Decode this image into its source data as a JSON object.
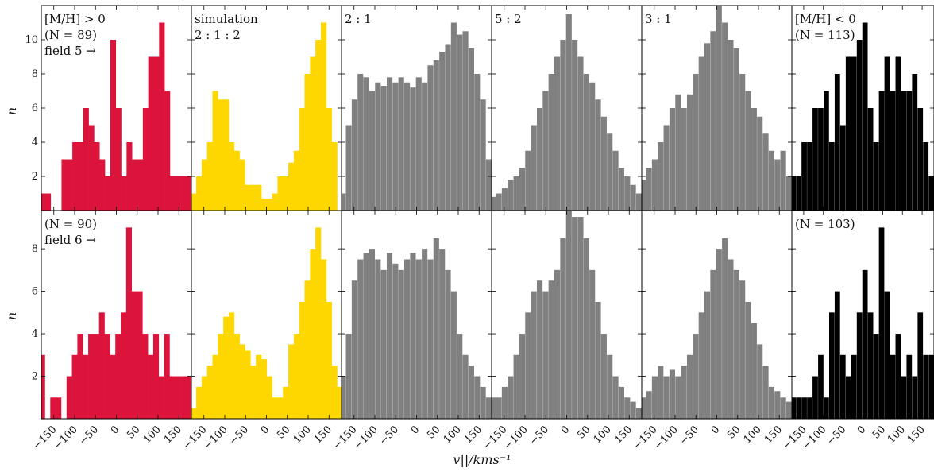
{
  "figure": {
    "xlabel": "v||/kms⁻¹",
    "ylabel": "n"
  },
  "chart_data": [
    {
      "type": "bar",
      "row": 1,
      "col": 1,
      "color": "#DC143C",
      "annotation": [
        "[M/H] > 0",
        "(N = 89)",
        "field 5 →"
      ],
      "x": [
        -177,
        -164,
        -151,
        -138,
        -125,
        -112,
        -99,
        -86,
        -73,
        -60,
        -47,
        -34,
        -21,
        -8,
        5,
        18,
        31,
        44,
        57,
        70,
        83,
        96,
        109,
        122,
        135,
        148,
        161,
        174
      ],
      "values": [
        1,
        1,
        0,
        0,
        3,
        3,
        4,
        4,
        6,
        5,
        4,
        3,
        2,
        10,
        6,
        2,
        4,
        3,
        3,
        6,
        9,
        9,
        11,
        7,
        2,
        2,
        2,
        2
      ],
      "ylim": [
        0,
        12
      ],
      "xlim": [
        -180,
        180
      ]
    },
    {
      "type": "bar",
      "row": 1,
      "col": 2,
      "color": "#FFD700",
      "annotation": [
        "simulation",
        "2 : 1 : 2"
      ],
      "x": [
        -175,
        -162,
        -149,
        -136,
        -123,
        -110,
        -97,
        -84,
        -71,
        -58,
        -45,
        -32,
        -19,
        -6,
        7,
        20,
        33,
        46,
        59,
        72,
        85,
        98,
        111,
        124,
        137,
        150,
        163
      ],
      "values": [
        1,
        2,
        3,
        4,
        7,
        6.5,
        6.5,
        4,
        3.5,
        3,
        1.5,
        1.5,
        1.5,
        0.7,
        0.7,
        1,
        2,
        2,
        2.8,
        3.5,
        6,
        8,
        9,
        10,
        11,
        6,
        4
      ],
      "ylim": [
        0,
        12
      ],
      "xlim": [
        -180,
        180
      ]
    },
    {
      "type": "bar",
      "row": 1,
      "col": 3,
      "color": "#808080",
      "annotation": [
        "2 : 1"
      ],
      "x": [
        -177,
        -163,
        -149,
        -135,
        -121,
        -107,
        -93,
        -79,
        -65,
        -51,
        -37,
        -23,
        -9,
        5,
        19,
        33,
        47,
        61,
        75,
        89,
        103,
        117,
        131,
        145,
        159,
        173
      ],
      "values": [
        1,
        5,
        6.5,
        8,
        7.8,
        7,
        7.5,
        7.3,
        7.8,
        7.5,
        7.8,
        7.5,
        7.2,
        7.8,
        7.5,
        8.5,
        8.8,
        9.3,
        9.7,
        11,
        10.3,
        10.5,
        9.5,
        8,
        6.5,
        3
      ],
      "ylim": [
        0,
        12
      ],
      "xlim": [
        -180,
        180
      ]
    },
    {
      "type": "bar",
      "row": 1,
      "col": 4,
      "color": "#808080",
      "annotation": [
        "5 : 2"
      ],
      "x": [
        -177,
        -163,
        -149,
        -135,
        -121,
        -107,
        -93,
        -79,
        -65,
        -51,
        -37,
        -23,
        -9,
        5,
        19,
        33,
        47,
        61,
        75,
        89,
        103,
        117,
        131,
        145,
        159,
        173
      ],
      "values": [
        0.8,
        1,
        1.3,
        1.8,
        2,
        2.5,
        3.5,
        5,
        6,
        7,
        8,
        9,
        10,
        11.5,
        10,
        9,
        8,
        7.5,
        6.5,
        5.5,
        4.5,
        3.5,
        2.5,
        2,
        1.5,
        1
      ],
      "ylim": [
        0,
        12
      ],
      "xlim": [
        -180,
        180
      ]
    },
    {
      "type": "bar",
      "row": 1,
      "col": 5,
      "color": "#808080",
      "annotation": [
        "3 : 1"
      ],
      "x": [
        -177,
        -163,
        -149,
        -135,
        -121,
        -107,
        -93,
        -79,
        -65,
        -51,
        -37,
        -23,
        -9,
        5,
        19,
        33,
        47,
        61,
        75,
        89,
        103,
        117,
        131,
        145,
        159,
        173
      ],
      "values": [
        1.8,
        2.5,
        3,
        4,
        5,
        6,
        6.8,
        6,
        6.8,
        8,
        9,
        9.8,
        10.5,
        12,
        11,
        10,
        9.5,
        8,
        7,
        6,
        5.5,
        4.5,
        3.5,
        3,
        3.5,
        2
      ],
      "ylim": [
        0,
        12
      ],
      "xlim": [
        -180,
        180
      ]
    },
    {
      "type": "bar",
      "row": 1,
      "col": 6,
      "color": "#000000",
      "annotation": [
        "[M/H] < 0",
        "(N = 113)"
      ],
      "x": [
        -177,
        -163,
        -149,
        -135,
        -121,
        -107,
        -93,
        -79,
        -65,
        -51,
        -37,
        -23,
        -9,
        5,
        19,
        33,
        47,
        61,
        75,
        89,
        103,
        117,
        131,
        145,
        159,
        173
      ],
      "values": [
        2,
        2,
        4,
        4,
        6,
        6,
        7,
        4,
        8,
        5,
        9,
        9,
        10,
        11,
        6,
        4,
        7,
        9,
        7,
        9,
        7,
        7,
        8,
        6,
        4,
        2
      ],
      "ylim": [
        0,
        12
      ],
      "xlim": [
        -180,
        180
      ]
    },
    {
      "type": "bar",
      "row": 2,
      "col": 1,
      "color": "#DC143C",
      "annotation": [
        "(N = 90)",
        "field 6 →"
      ],
      "x": [
        -178,
        -165,
        -152,
        -139,
        -126,
        -113,
        -100,
        -87,
        -74,
        -61,
        -48,
        -35,
        -22,
        -9,
        4,
        17,
        30,
        43,
        56,
        69,
        82,
        95,
        108,
        121,
        134,
        147,
        160,
        173
      ],
      "values": [
        3,
        0,
        1,
        1,
        0,
        2,
        3,
        4,
        3,
        4,
        4,
        5,
        4,
        3,
        4,
        5,
        9,
        6,
        6,
        4,
        3,
        4,
        2,
        4,
        2,
        2,
        2,
        2
      ],
      "ylim": [
        0,
        9.8
      ],
      "xlim": [
        -180,
        180
      ]
    },
    {
      "type": "bar",
      "row": 2,
      "col": 2,
      "color": "#FFD700",
      "annotation": [],
      "x": [
        -175,
        -162,
        -149,
        -136,
        -123,
        -110,
        -97,
        -84,
        -71,
        -58,
        -45,
        -32,
        -19,
        -6,
        7,
        20,
        33,
        46,
        59,
        72,
        85,
        98,
        111,
        124,
        137,
        150,
        163,
        176
      ],
      "values": [
        0.5,
        1.5,
        2,
        2.5,
        3,
        4,
        4.8,
        5,
        4,
        3.5,
        3.2,
        2.5,
        3,
        2.8,
        2,
        1,
        1,
        1.5,
        3.5,
        4,
        5.5,
        6.5,
        8,
        9,
        7.5,
        5.5,
        2.5,
        1.5
      ],
      "ylim": [
        0,
        9.8
      ],
      "xlim": [
        -180,
        180
      ]
    },
    {
      "type": "bar",
      "row": 2,
      "col": 3,
      "color": "#808080",
      "annotation": [],
      "x": [
        -177,
        -163,
        -149,
        -135,
        -121,
        -107,
        -93,
        -79,
        -65,
        -51,
        -37,
        -23,
        -9,
        5,
        19,
        33,
        47,
        61,
        75,
        89,
        103,
        117,
        131,
        145,
        159,
        173
      ],
      "values": [
        2,
        4,
        6.5,
        7.5,
        7.8,
        8,
        7.5,
        7,
        7.8,
        7.3,
        7,
        7.5,
        7.8,
        7.5,
        8,
        7.5,
        8.5,
        8,
        7,
        6,
        4,
        3,
        2.5,
        2,
        1.5,
        1
      ],
      "ylim": [
        0,
        9.8
      ],
      "xlim": [
        -180,
        180
      ]
    },
    {
      "type": "bar",
      "row": 2,
      "col": 4,
      "color": "#808080",
      "annotation": [],
      "x": [
        -177,
        -163,
        -149,
        -135,
        -121,
        -107,
        -93,
        -79,
        -65,
        -51,
        -37,
        -23,
        -9,
        5,
        19,
        33,
        47,
        61,
        75,
        89,
        103,
        117,
        131,
        145,
        159,
        173
      ],
      "values": [
        1,
        1,
        1.5,
        2,
        3,
        4,
        5,
        6,
        6.5,
        6,
        6.5,
        7,
        8.5,
        9.8,
        9.5,
        9.5,
        8.5,
        7,
        5.5,
        4,
        3,
        2,
        1.5,
        1,
        0.8,
        0.5
      ],
      "ylim": [
        0,
        9.8
      ],
      "xlim": [
        -180,
        180
      ]
    },
    {
      "type": "bar",
      "row": 2,
      "col": 5,
      "color": "#808080",
      "annotation": [],
      "x": [
        -177,
        -163,
        -149,
        -135,
        -121,
        -107,
        -93,
        -79,
        -65,
        -51,
        -37,
        -23,
        -9,
        5,
        19,
        33,
        47,
        61,
        75,
        89,
        103,
        117,
        131,
        145,
        159,
        173
      ],
      "values": [
        1,
        1.3,
        2,
        2.5,
        2,
        2.3,
        2,
        2.5,
        3,
        4,
        5,
        6,
        7,
        8,
        8.5,
        7.5,
        7,
        6.5,
        5.5,
        4.5,
        3.5,
        2.5,
        1.5,
        1.3,
        1,
        0.8
      ],
      "ylim": [
        0,
        9.8
      ],
      "xlim": [
        -180,
        180
      ]
    },
    {
      "type": "bar",
      "row": 2,
      "col": 6,
      "color": "#000000",
      "annotation": [
        "(N = 103)"
      ],
      "x": [
        -177,
        -163,
        -149,
        -135,
        -121,
        -107,
        -93,
        -79,
        -65,
        -51,
        -37,
        -23,
        -9,
        5,
        19,
        33,
        47,
        61,
        75,
        89,
        103,
        117,
        131,
        145,
        159,
        173
      ],
      "values": [
        1,
        1,
        1,
        1,
        2,
        3,
        1,
        5,
        6,
        3,
        2,
        3,
        5,
        7,
        5,
        4,
        9,
        6,
        3,
        4,
        2,
        3,
        2,
        5,
        3,
        3
      ],
      "ylim": [
        0,
        9.8
      ],
      "xlim": [
        -180,
        180
      ]
    }
  ],
  "ticks": {
    "yticks_row1": [
      "2",
      "4",
      "6",
      "8",
      "10"
    ],
    "yticks_row2": [
      "2",
      "4",
      "6",
      "8"
    ],
    "xticks": [
      "−150",
      "−100",
      "−50",
      "0",
      "50",
      "100",
      "150"
    ]
  }
}
